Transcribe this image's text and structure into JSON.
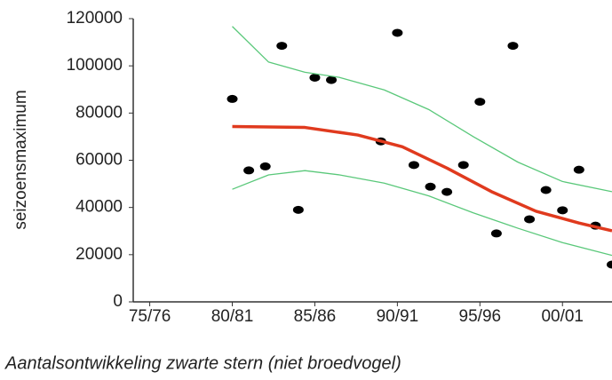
{
  "chart_data": {
    "type": "scatter",
    "y_label": "seizoensmaximum",
    "caption": "Aantalsontwikkeling zwarte stern (niet broedvogel)",
    "xlim": [
      1974,
      2003
    ],
    "xticks": [
      {
        "value": 1975,
        "label": "75/76"
      },
      {
        "value": 1980,
        "label": "80/81"
      },
      {
        "value": 1985,
        "label": "85/86"
      },
      {
        "value": 1990,
        "label": "90/91"
      },
      {
        "value": 1995,
        "label": "95/96"
      },
      {
        "value": 2000,
        "label": "00/01"
      }
    ],
    "ylim": [
      0,
      120000
    ],
    "yticks": [
      0,
      20000,
      40000,
      60000,
      80000,
      100000,
      120000
    ],
    "series": [
      {
        "kind": "points",
        "color": "#000000",
        "x": [
          1980,
          1981,
          1982,
          1983,
          1984,
          1985,
          1986,
          1989,
          1990,
          1991,
          1992,
          1993,
          1994,
          1995,
          1996,
          1997,
          1998,
          1999,
          2000,
          2001,
          2002,
          2003
        ],
        "values": [
          86000,
          55700,
          57400,
          108500,
          39000,
          95000,
          94000,
          68000,
          114000,
          58000,
          48800,
          46600,
          58000,
          84800,
          29000,
          108500,
          35000,
          47400,
          38800,
          56000,
          32300,
          15800
        ]
      },
      {
        "kind": "line",
        "color": "#e03a1e",
        "x": [
          1980,
          1984.4,
          1987.6,
          1990.3,
          1993,
          1995.7,
          1998.4,
          2001,
          2003
        ],
        "values": [
          74300,
          73900,
          70700,
          65700,
          56700,
          46700,
          38400,
          33400,
          30100
        ]
      },
      {
        "kind": "band",
        "color": "#5ac87a",
        "x": [
          1980,
          1982.2,
          1984.4,
          1986.5,
          1989.2,
          1991.9,
          1994.6,
          1997.3,
          2000,
          2003
        ],
        "values": [
          116700,
          101600,
          97300,
          95100,
          89800,
          81500,
          70000,
          59200,
          51000,
          46700
        ]
      },
      {
        "kind": "band",
        "color": "#5ac87a",
        "x": [
          1980,
          1982.2,
          1984.4,
          1986.5,
          1989.2,
          1991.9,
          1994.6,
          1997.3,
          2000,
          2003
        ],
        "values": [
          47700,
          53800,
          55600,
          53800,
          50300,
          44900,
          37700,
          31200,
          25100,
          19700
        ]
      }
    ]
  }
}
